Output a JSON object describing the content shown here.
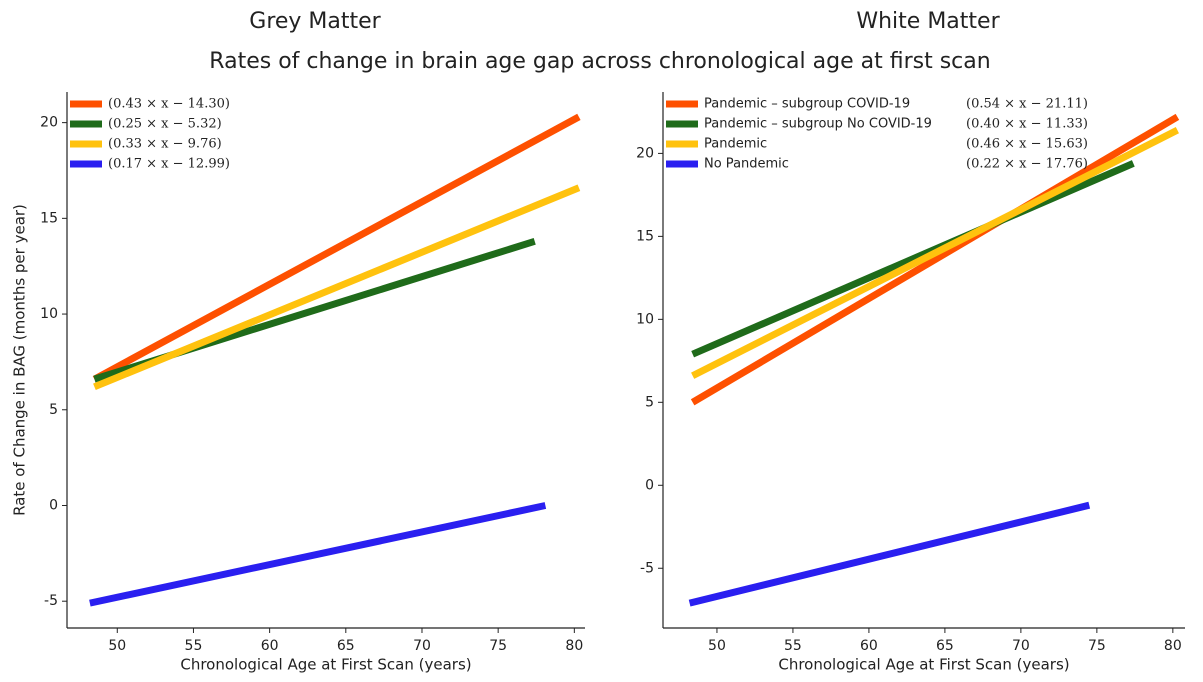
{
  "title": "Rates of change in brain age gap across chronological age at first scan",
  "chart_data": [
    {
      "type": "line",
      "title": "Grey Matter",
      "xlabel": "Chronological Age at First Scan (years)",
      "ylabel": "Rate of Change in BAG (months per year)",
      "xlim": [
        46.7,
        80.7
      ],
      "ylim": [
        -6.4,
        21.6
      ],
      "xticks": [
        50,
        55,
        60,
        65,
        70,
        75,
        80
      ],
      "yticks": [
        -5,
        0,
        5,
        10,
        15,
        20
      ],
      "grid": false,
      "legend": "upper left",
      "series": [
        {
          "name": "(0.43 × x − 14.30)",
          "color": "#fe5000",
          "x": [
            48.5,
            80.3
          ],
          "values": [
            6.6,
            20.3
          ]
        },
        {
          "name": "(0.25 × x − 5.32)",
          "color": "#1f6b1a",
          "x": [
            48.5,
            77.4
          ],
          "values": [
            6.6,
            13.8
          ]
        },
        {
          "name": "(0.33 × x − 9.76)",
          "color": "#ffc20e",
          "x": [
            48.5,
            80.3
          ],
          "values": [
            6.2,
            16.6
          ]
        },
        {
          "name": "(0.17 × x − 12.99)",
          "color": "#2a1ff0",
          "x": [
            48.2,
            78.1
          ],
          "values": [
            -5.1,
            0.0
          ]
        }
      ]
    },
    {
      "type": "line",
      "title": "White Matter",
      "xlabel": "Chronological Age at First Scan (years)",
      "xlim": [
        46.45,
        80.8
      ],
      "ylim": [
        -8.6,
        23.7
      ],
      "xticks": [
        50,
        55,
        60,
        65,
        70,
        75,
        80
      ],
      "yticks": [
        -5,
        0,
        5,
        10,
        15,
        20
      ],
      "grid": false,
      "legend": "upper left",
      "series": [
        {
          "name": "Pandemic – subgroup COVID-19",
          "equation": "(0.54 × x − 21.11)",
          "color": "#fe5000",
          "x": [
            48.4,
            80.3
          ],
          "values": [
            5.0,
            22.2
          ]
        },
        {
          "name": "Pandemic – subgroup No COVID-19",
          "equation": "(0.40 × x − 11.33)",
          "color": "#1f6b1a",
          "x": [
            48.4,
            77.4
          ],
          "values": [
            7.9,
            19.4
          ]
        },
        {
          "name": "Pandemic",
          "equation": "(0.46 × x − 15.63)",
          "color": "#ffc20e",
          "x": [
            48.4,
            80.3
          ],
          "values": [
            6.6,
            21.4
          ]
        },
        {
          "name": "No Pandemic",
          "equation": "(0.22 × x − 17.76)",
          "color": "#2a1ff0",
          "x": [
            48.2,
            74.5
          ],
          "values": [
            -7.1,
            -1.2
          ]
        }
      ]
    }
  ]
}
